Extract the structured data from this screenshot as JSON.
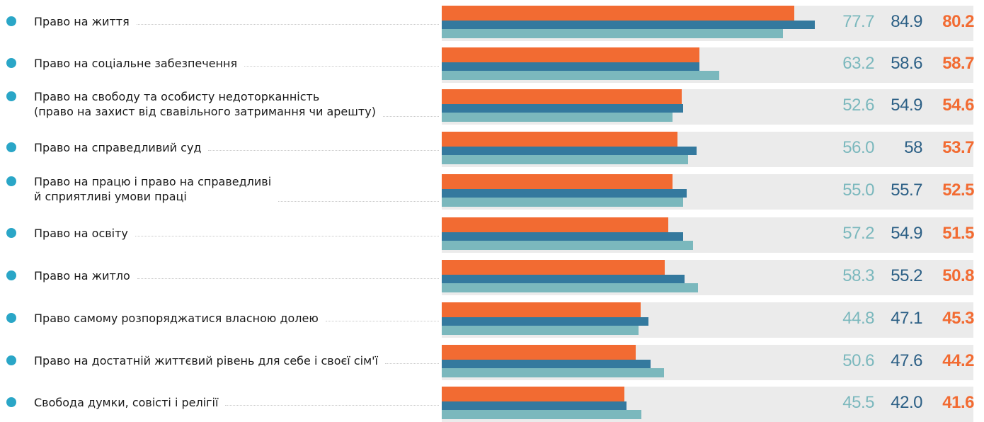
{
  "colors": {
    "bullet": "#2aa6c7",
    "series_2022": "#f26b32",
    "series_2021": "#34799e",
    "series_2020": "#7bb8bd",
    "value_2020": "#7bb8bd",
    "value_2021": "#2b5f85",
    "value_2022": "#f26b32",
    "track": "#ebebeb"
  },
  "chart_data": {
    "type": "bar",
    "orientation": "horizontal",
    "legend": "none",
    "xlim": [
      0,
      121
    ],
    "categories": [
      [
        "Право на життя"
      ],
      [
        "Право на соціальне забезпечення"
      ],
      [
        "Право на свободу та особисту недоторканність",
        "(право на захист від свавільного затримання чи арешту)"
      ],
      [
        "Право на справедливий суд"
      ],
      [
        "Право на працю і право на справедливі",
        "й сприятливі умови праці"
      ],
      [
        "Право на освіту"
      ],
      [
        "Право на житло"
      ],
      [
        "Право самому розпоряджатися власною долею"
      ],
      [
        "Право на достатній життєвий рівень для себе і своєї сім'ї"
      ],
      [
        "Свобода думки, совісті і релігії"
      ]
    ],
    "series": [
      {
        "key": "s2022",
        "values": [
          80.2,
          58.7,
          54.6,
          53.7,
          52.5,
          51.5,
          50.8,
          45.3,
          44.2,
          41.6
        ],
        "labels": [
          "80.2",
          "58.7",
          "54.6",
          "53.7",
          "52.5",
          "51.5",
          "50.8",
          "45.3",
          "44.2",
          "41.6"
        ]
      },
      {
        "key": "s2021",
        "values": [
          84.9,
          58.6,
          54.9,
          58,
          55.7,
          54.9,
          55.2,
          47.1,
          47.6,
          42.0
        ],
        "labels": [
          "84.9",
          "58.6",
          "54.9",
          "58",
          "55.7",
          "54.9",
          "55.2",
          "47.1",
          "47.6",
          "42.0"
        ]
      },
      {
        "key": "s2020",
        "values": [
          77.7,
          63.2,
          52.6,
          56.0,
          55.0,
          57.2,
          58.3,
          44.8,
          50.6,
          45.5
        ],
        "labels": [
          "77.7",
          "63.2",
          "52.6",
          "56.0",
          "55.0",
          "57.2",
          "58.3",
          "44.8",
          "50.6",
          "45.5"
        ]
      }
    ]
  }
}
